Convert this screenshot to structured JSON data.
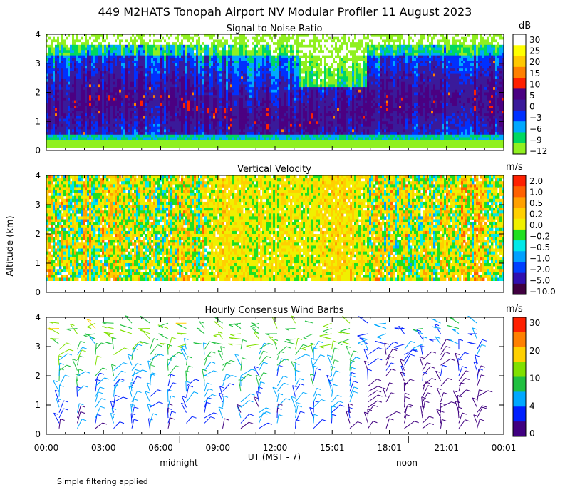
{
  "title": "449 M2HATS Tonopah Airport NV Modular Profiler 11 August 2023",
  "ylabel": "Altitude (km)",
  "xlabel": "UT  (MST - 7)",
  "time_ticks": [
    "00:00",
    "03:00",
    "06:00",
    "09:00",
    "12:00",
    "15:01",
    "18:01",
    "21:01",
    "00:01"
  ],
  "local_markers": [
    "midnight",
    "noon"
  ],
  "footer": "Simple filtering applied",
  "yticks": [
    "0",
    "1",
    "2",
    "3",
    "4"
  ],
  "chart_data": [
    {
      "type": "heatmap",
      "title": "Signal to Noise Ratio",
      "units": "dB",
      "ylim": [
        0,
        4
      ],
      "xlim": [
        "00:00",
        "00:01"
      ],
      "colorbar": {
        "labels": [
          "30",
          "25",
          "20",
          "15",
          "10",
          "5",
          "0",
          "−3",
          "−6",
          "−9",
          "−12"
        ],
        "colors": [
          "#ffffff",
          "#ffff00",
          "#ffc800",
          "#ff8000",
          "#ff2000",
          "#4b0082",
          "#3a1a9a",
          "#0030ff",
          "#00a8ff",
          "#00d860",
          "#90f020"
        ]
      }
    },
    {
      "type": "heatmap",
      "title": "Vertical Velocity",
      "units": "m/s",
      "ylim": [
        0,
        4
      ],
      "xlim": [
        "00:00",
        "00:01"
      ],
      "colorbar": {
        "labels": [
          "2.0",
          "1.0",
          "0.5",
          "0.2",
          "0.0",
          "−0.2",
          "−0.5",
          "−1.0",
          "−2.0",
          "−5.0",
          "−10.0"
        ],
        "colors": [
          "#ff2000",
          "#ff6000",
          "#ffa000",
          "#ffd000",
          "#f0f000",
          "#20e020",
          "#00e8e8",
          "#00a0ff",
          "#0040ff",
          "#3010b0",
          "#400040"
        ]
      }
    },
    {
      "type": "wind_barbs",
      "title": "Hourly Consensus Wind Barbs",
      "units": "m/s",
      "ylim": [
        0,
        4
      ],
      "xlim": [
        "00:00",
        "00:01"
      ],
      "colorbar": {
        "labels": [
          "30",
          "20",
          "10",
          "4",
          "0"
        ],
        "colors": [
          "#ff2000",
          "#ff8000",
          "#ffd000",
          "#80e000",
          "#20c040",
          "#00a8ff",
          "#0020ff",
          "#400080"
        ]
      }
    }
  ]
}
